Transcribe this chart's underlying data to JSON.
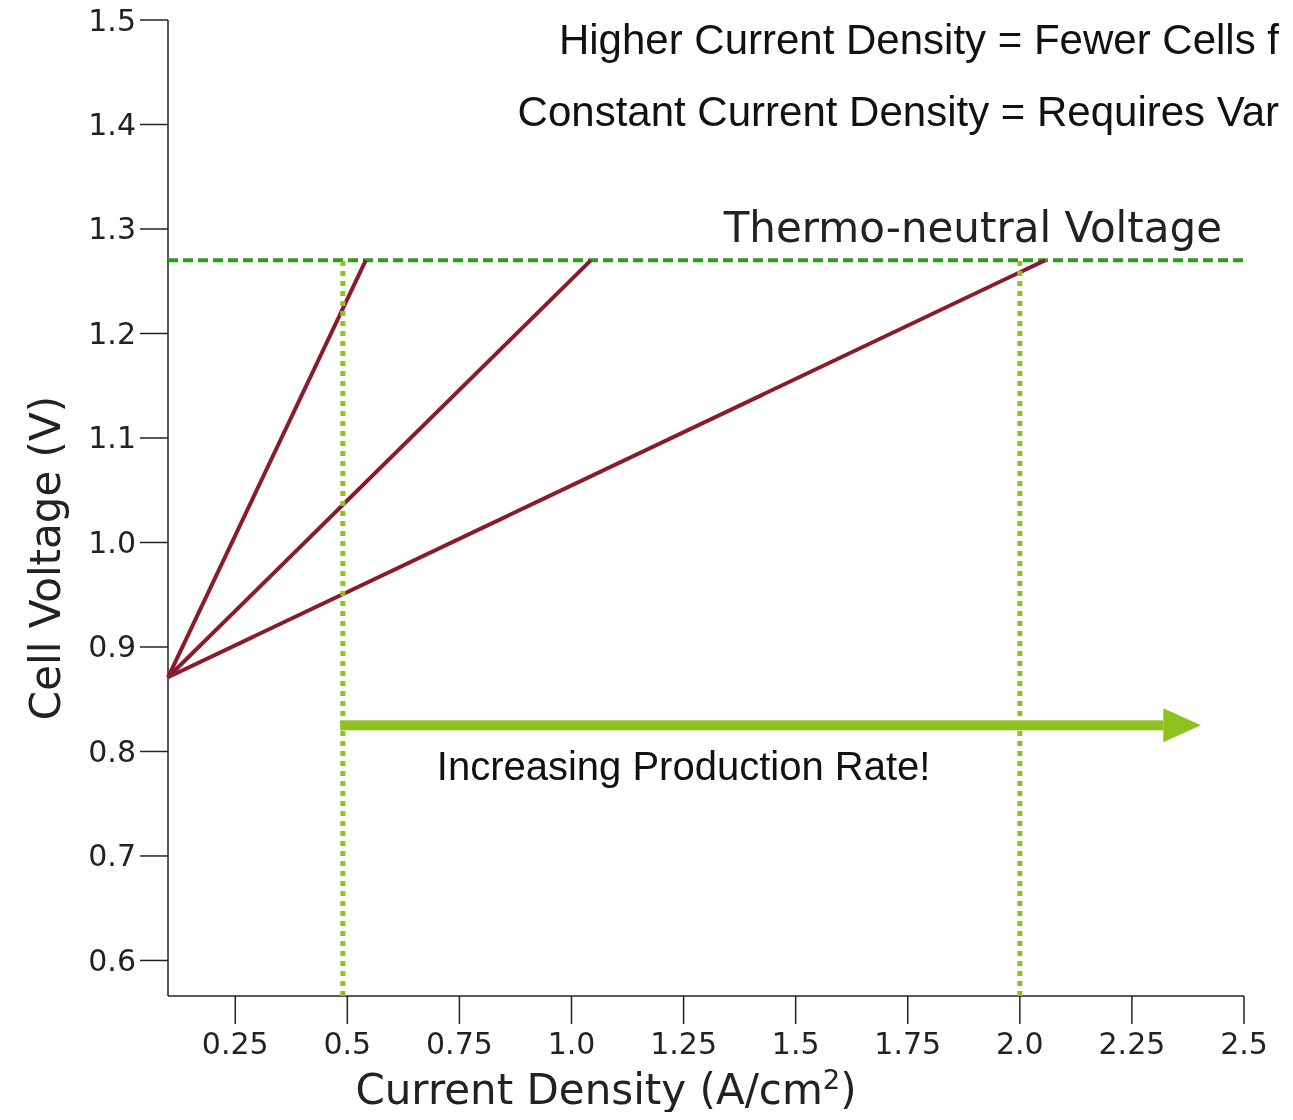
{
  "chart_data": {
    "type": "line",
    "xlabel": "Current Density (A/cm$^{2}$)",
    "ylabel": "Cell Voltage (V)",
    "annotations": [
      "Higher Current Density = Fewer Cells f",
      "Constant Current Density = Requires Var",
      "Increasing Production Rate!"
    ],
    "xlim": [
      0.1,
      2.5
    ],
    "ylim": [
      0.566,
      1.5
    ],
    "xticks": [
      0.25,
      0.5,
      0.75,
      {
        "value": 1,
        "label": "1.0"
      },
      1.25,
      1.5,
      1.75,
      {
        "value": 2,
        "label": "2.0"
      },
      2.25,
      2.5
    ],
    "yticks": [
      0.6,
      0.7,
      0.8,
      0.9,
      {
        "value": 1,
        "label": "1.0"
      },
      1.1,
      1.2,
      1.3,
      1.4,
      1.5
    ],
    "grid": false,
    "marker": "none",
    "series": [
      {
        "color": "#8b1a2b",
        "x": [
          0.1,
          0.541
        ],
        "values": [
          0.871,
          1.27
        ]
      },
      {
        "color": "#8b1a2b",
        "x": [
          0.1,
          1.043
        ],
        "values": [
          0.871,
          1.27
        ]
      },
      {
        "color": "#8b1a2b",
        "x": [
          0.1,
          2.056
        ],
        "values": [
          0.871,
          1.27
        ]
      },
      {
        "color": "#8dc21f",
        "line_style": "dotted",
        "x": [
          0.49,
          0.49
        ],
        "values": [
          0.566,
          1.27
        ]
      },
      {
        "color": "#8dc21f",
        "line_style": "dotted",
        "x": [
          2.0,
          2.0
        ],
        "values": [
          0.566,
          1.27
        ]
      }
    ],
    "ref_lines": [
      {
        "axis": "y",
        "value": 1.27,
        "label": "Thermo-neutral Voltage",
        "color": "#2e9b1e",
        "line_style": "dashed"
      }
    ]
  }
}
